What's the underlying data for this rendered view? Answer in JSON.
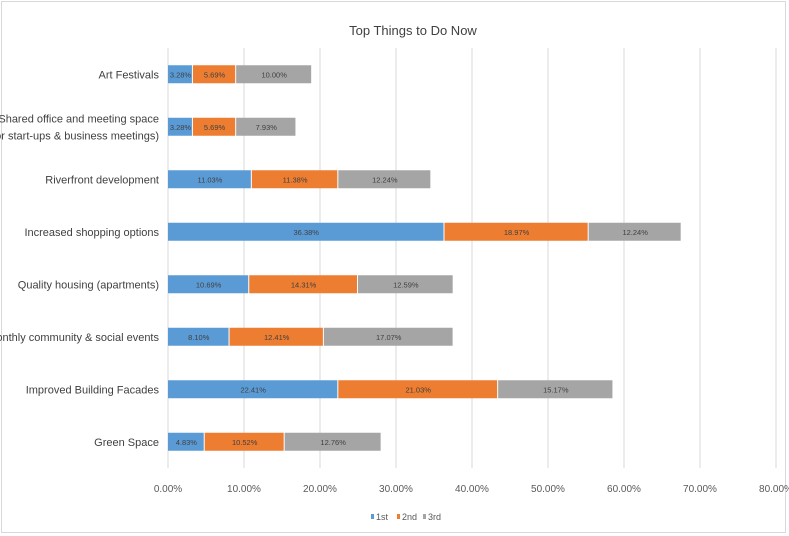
{
  "chart_data": {
    "type": "bar",
    "orientation": "horizontal",
    "stacked": true,
    "title": "Top Things to Do Now",
    "xlabel": "",
    "ylabel": "",
    "xlim": [
      0,
      80
    ],
    "x_ticks": [
      "0.00%",
      "10.00%",
      "20.00%",
      "30.00%",
      "40.00%",
      "50.00%",
      "60.00%",
      "70.00%",
      "80.00%"
    ],
    "grid": "vertical",
    "legend": "bottom",
    "categories": [
      "Art Festivals",
      "Shared office and meeting space (for start-ups & business meetings)",
      "Riverfront development",
      "Increased shopping options",
      "Quality housing (apartments)",
      "Monthly community & social events",
      "Improved Building Facades",
      "Green Space"
    ],
    "category_lines": [
      [
        "Art Festivals"
      ],
      [
        "Shared office and meeting space",
        "(for start-ups & business meetings)"
      ],
      [
        "Riverfront development"
      ],
      [
        "Increased shopping options"
      ],
      [
        "Quality housing (apartments)"
      ],
      [
        "Monthly community & social events"
      ],
      [
        "Improved Building Facades"
      ],
      [
        "Green Space"
      ]
    ],
    "series": [
      {
        "name": "1st",
        "color": "#5b9bd5",
        "values": [
          3.28,
          3.28,
          11.03,
          36.38,
          10.69,
          8.1,
          22.41,
          4.83
        ],
        "labels": [
          "3.28%",
          "3.28%",
          "11.03%",
          "36.38%",
          "10.69%",
          "8.10%",
          "22.41%",
          "4.83%"
        ]
      },
      {
        "name": "2nd",
        "color": "#ed7d31",
        "values": [
          5.69,
          5.69,
          11.38,
          18.97,
          14.31,
          12.41,
          21.03,
          10.52
        ],
        "labels": [
          "5.69%",
          "5.69%",
          "11.38%",
          "18.97%",
          "14.31%",
          "12.41%",
          "21.03%",
          "10.52%"
        ]
      },
      {
        "name": "3rd",
        "color": "#a5a5a5",
        "values": [
          10.0,
          7.93,
          12.24,
          12.24,
          12.59,
          17.07,
          15.17,
          12.76
        ],
        "labels": [
          "10.00%",
          "7.93%",
          "12.24%",
          "12.24%",
          "12.59%",
          "17.07%",
          "15.17%",
          "12.76%"
        ]
      }
    ]
  }
}
